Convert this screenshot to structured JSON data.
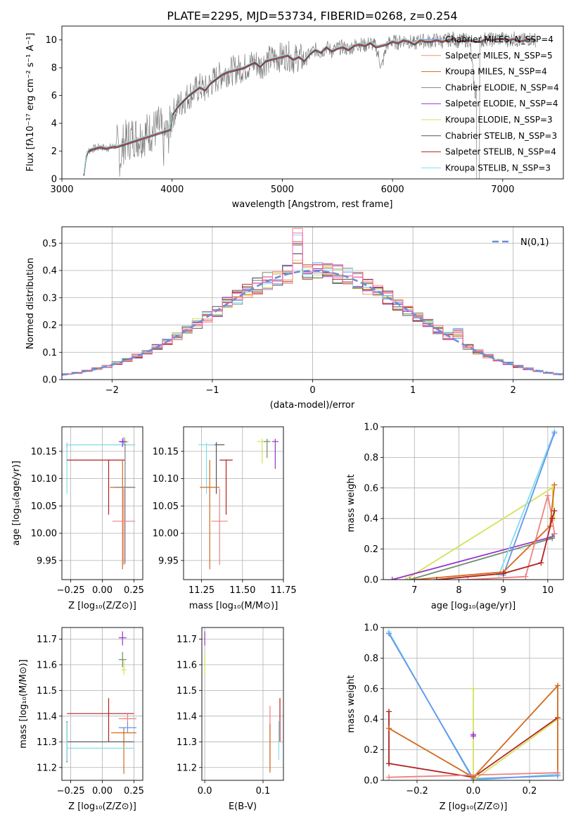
{
  "chart_data": [
    {
      "id": "spectrum",
      "type": "line",
      "title": "PLATE=2295, MJD=53734, FIBERID=0268, z=0.254",
      "xlabel": "wavelength [Angstrom, rest frame]",
      "ylabel": "Flux [fλ10⁻¹⁷ erg cm⁻² s⁻¹ A⁻¹]",
      "xlim": [
        3000,
        7550
      ],
      "ylim": [
        0,
        11
      ],
      "xticks": [
        3000,
        4000,
        5000,
        6000,
        7000
      ],
      "yticks": [
        0,
        2,
        4,
        6,
        8,
        10
      ],
      "legend_position": "upper right",
      "data_series": {
        "name": "",
        "color": "#808080",
        "x": [
          3200,
          3220,
          3240,
          3260,
          3300,
          3350,
          3400,
          3450,
          3500,
          3530,
          3560,
          3600,
          3650,
          3700,
          3750,
          3800,
          3850,
          3900,
          3920,
          3940,
          3960,
          3980,
          4000,
          4050,
          4100,
          4150,
          4200,
          4250,
          4300,
          4350,
          4400,
          4450,
          4500,
          4550,
          4600,
          4650,
          4700,
          4750,
          4800,
          4850,
          4900,
          4950,
          5000,
          5050,
          5100,
          5150,
          5200,
          5250,
          5300,
          5350,
          5400,
          5450,
          5500,
          5550,
          5600,
          5650,
          5700,
          5750,
          5800,
          5850,
          5900,
          5950,
          6000,
          6050,
          6100,
          6150,
          6200,
          6250,
          6300,
          6350,
          6400,
          6450,
          6500,
          6550,
          6600,
          6650,
          6700,
          6750,
          6800,
          6850,
          6900,
          6950,
          7000,
          7050,
          7100,
          7150,
          7200,
          7250,
          7300
        ],
        "y": [
          0.3,
          1.6,
          2.0,
          2.1,
          2.2,
          2.3,
          2.2,
          2.3,
          2.4,
          1.5,
          2.6,
          2.8,
          3.1,
          3.0,
          3.2,
          3.4,
          3.6,
          3.8,
          2.0,
          3.5,
          3.0,
          3.7,
          4.6,
          5.2,
          5.6,
          6.0,
          6.3,
          6.6,
          6.4,
          6.9,
          7.2,
          7.5,
          7.7,
          7.8,
          7.9,
          8.0,
          8.2,
          8.4,
          8.1,
          8.5,
          8.6,
          8.7,
          8.8,
          8.9,
          8.6,
          8.8,
          8.5,
          9.0,
          9.3,
          9.1,
          9.5,
          9.2,
          9.4,
          9.5,
          9.3,
          9.6,
          9.7,
          9.6,
          9.8,
          9.5,
          8.0,
          9.7,
          9.9,
          9.8,
          10.0,
          9.9,
          9.7,
          10.0,
          9.9,
          9.9,
          10.0,
          9.9,
          10.0,
          10.1,
          9.9,
          10.0,
          10.0,
          6.0,
          9.9,
          10.1,
          10.0,
          10.1,
          10.1,
          10.0,
          10.1,
          9.9,
          10.0,
          10.1,
          10.0
        ]
      },
      "series": [
        {
          "name": "Chabrier MILES, N_SSP=4",
          "color": "#6495ed"
        },
        {
          "name": "Salpeter MILES, N_SSP=5",
          "color": "#e9967a"
        },
        {
          "name": "Kroupa MILES, N_SSP=4",
          "color": "#d2691e"
        },
        {
          "name": "Chabrier ELODIE, N_SSP=4",
          "color": "#6b8e6b"
        },
        {
          "name": "Salpeter ELODIE, N_SSP=4",
          "color": "#9932cc"
        },
        {
          "name": "Kroupa ELODIE, N_SSP=3",
          "color": "#d4e157"
        },
        {
          "name": "Chabrier STELIB, N_SSP=3",
          "color": "#555555"
        },
        {
          "name": "Salpeter STELIB, N_SSP=4",
          "color": "#b22222"
        },
        {
          "name": "Kroupa STELIB, N_SSP=3",
          "color": "#80deea"
        }
      ]
    },
    {
      "id": "residuals",
      "type": "line",
      "xlabel": "(data-model)/error",
      "ylabel": "Normed distribution",
      "xlim": [
        -2.5,
        2.5
      ],
      "ylim": [
        0,
        0.56
      ],
      "xticks": [
        -2,
        -1,
        0,
        1,
        2
      ],
      "yticks": [
        0.0,
        0.1,
        0.2,
        0.3,
        0.4,
        0.5
      ],
      "legend": "N(0,1)",
      "legend_position": "upper right",
      "bin_width": 0.1,
      "hist_bin_start": -2.5,
      "hist_colors": [
        "#6495ed",
        "#e9967a",
        "#d2691e",
        "#6b8e6b",
        "#9932cc",
        "#d4e157",
        "#555555",
        "#b22222",
        "#80deea",
        "#f08080",
        "#ff69b4"
      ]
    },
    {
      "id": "age_vs_Z",
      "type": "scatter",
      "xlabel": "Z [log₁₀(Z/Z⊙)]",
      "ylabel": "age  [log₁₀(age/yr)]",
      "xlim": [
        -0.32,
        0.32
      ],
      "ylim": [
        9.915,
        10.195
      ],
      "xticks": [
        -0.25,
        0.0,
        0.25
      ],
      "xtick_labels": [
        "−0.25",
        "0.00",
        "0.25"
      ],
      "yticks": [
        9.95,
        10.0,
        10.05,
        10.1,
        10.15
      ],
      "points": [
        {
          "x": 0.17,
          "y": 10.167,
          "xerr": 0.03,
          "yerr": [
            0.006,
            0.009
          ],
          "color": "#6495ed"
        },
        {
          "x": -0.28,
          "y": 10.162,
          "xerr_range": [
            -0.28,
            0.26
          ],
          "yerr": [
            0.005,
            0.004
          ],
          "color": "#6b8e6b"
        },
        {
          "x": -0.28,
          "y": 10.162,
          "xerr_range": [
            -0.28,
            0.26
          ],
          "yerr": [
            0.09,
            0.004
          ],
          "color": "#80deea"
        },
        {
          "x": 0.18,
          "y": 10.168,
          "xerr": 0.03,
          "yerr": [
            0.012,
            0.007
          ],
          "color": "#d4e157"
        },
        {
          "x": 0.16,
          "y": 10.168,
          "xerr": 0.03,
          "yerr": [
            0.01,
            0.006
          ],
          "color": "#9932cc"
        },
        {
          "x": 0.05,
          "y": 10.134,
          "xerr_range": [
            -0.28,
            0.18
          ],
          "yerr": [
            0.1,
            0.0
          ],
          "color": "#b22222"
        },
        {
          "x": 0.16,
          "y": 10.084,
          "xerr": 0.1,
          "yerr": [
            0.15,
            0.05
          ],
          "color": "#d2691e"
        },
        {
          "x": 0.18,
          "y": 10.084,
          "xerr": 0.08,
          "yerr": [
            0.14,
            0.08
          ],
          "color": "#808080"
        },
        {
          "x": 0.17,
          "y": 10.022,
          "xerr": 0.09,
          "yerr": [
            0.08,
            0.06
          ],
          "color": "#f08080"
        }
      ]
    },
    {
      "id": "age_vs_mass",
      "type": "scatter",
      "xlabel": "mass [log₁₀(M/M⊙)]",
      "ylabel": "",
      "xlim": [
        11.14,
        11.75
      ],
      "ylim": [
        9.915,
        10.195
      ],
      "xticks": [
        11.25,
        11.5,
        11.75
      ],
      "xtick_labels": [
        "11.25",
        "11.50",
        "11.75"
      ],
      "yticks": [
        9.95,
        10.0,
        10.05,
        10.1,
        10.15
      ],
      "points": [
        {
          "x": 11.62,
          "y": 10.168,
          "xerr": 0.03,
          "yerr": [
            0.04,
            0.005
          ],
          "color": "#d4e157"
        },
        {
          "x": 11.65,
          "y": 10.168,
          "xerr": 0.02,
          "yerr": [
            0.03,
            0.005
          ],
          "color": "#6b8e6b"
        },
        {
          "x": 11.7,
          "y": 10.168,
          "xerr": 0.02,
          "yerr": [
            0.05,
            0.005
          ],
          "color": "#9932cc"
        },
        {
          "x": 11.34,
          "y": 10.162,
          "xerr": 0.05,
          "yerr": [
            0.09,
            0.005
          ],
          "color": "#555555"
        },
        {
          "x": 11.28,
          "y": 10.162,
          "xerr": 0.05,
          "yerr": [
            0.09,
            0.004
          ],
          "color": "#80deea"
        },
        {
          "x": 11.4,
          "y": 10.134,
          "xerr": 0.04,
          "yerr": [
            0.1,
            0.0
          ],
          "color": "#b22222"
        },
        {
          "x": 11.3,
          "y": 10.084,
          "xerr": 0.06,
          "yerr": [
            0.15,
            0.05
          ],
          "color": "#d2691e"
        },
        {
          "x": 11.36,
          "y": 10.022,
          "xerr": 0.05,
          "yerr": [
            0.08,
            0.06
          ],
          "color": "#f08080"
        }
      ]
    },
    {
      "id": "massweight_vs_age",
      "type": "line",
      "xlabel": "age  [log₁₀(age/yr)]",
      "ylabel": "mass weight",
      "xlim": [
        6.3,
        10.35
      ],
      "ylim": [
        0,
        1.0
      ],
      "xticks": [
        7,
        8,
        9,
        10
      ],
      "yticks": [
        0.0,
        0.2,
        0.4,
        0.6,
        0.8,
        1.0
      ],
      "series": [
        {
          "color": "#d4e157",
          "x": [
            6.8,
            10.1,
            10.15
          ],
          "y": [
            0.0,
            0.6,
            0.4
          ]
        },
        {
          "color": "#9932cc",
          "x": [
            6.5,
            10.1,
            10.15
          ],
          "y": [
            0.0,
            0.28,
            0.3
          ]
        },
        {
          "color": "#6b8e6b",
          "x": [
            6.9,
            10.1,
            10.15
          ],
          "y": [
            0.0,
            0.27,
            0.3
          ]
        },
        {
          "color": "#80deea",
          "x": [
            8.9,
            10.15
          ],
          "y": [
            0.03,
            0.97
          ]
        },
        {
          "color": "#6495ed",
          "x": [
            9.0,
            10.15
          ],
          "y": [
            0.03,
            0.96
          ]
        },
        {
          "color": "#f08080",
          "x": [
            8.2,
            9.5,
            10.0,
            10.1,
            10.15
          ],
          "y": [
            0.0,
            0.02,
            0.55,
            0.4,
            0.3
          ]
        },
        {
          "color": "#d2691e",
          "x": [
            7.0,
            9.0,
            10.05,
            10.15
          ],
          "y": [
            0.0,
            0.05,
            0.35,
            0.62
          ]
        },
        {
          "color": "#b22222",
          "x": [
            7.5,
            9.0,
            9.85,
            10.1,
            10.15
          ],
          "y": [
            0.0,
            0.04,
            0.11,
            0.4,
            0.45
          ]
        }
      ]
    },
    {
      "id": "mass_vs_Z",
      "type": "scatter",
      "xlabel": "Z [log₁₀(Z/Z⊙)]",
      "ylabel": "mass [log₁₀(M/M⊙)]",
      "xlim": [
        -0.32,
        0.32
      ],
      "ylim": [
        11.15,
        11.745
      ],
      "xticks": [
        -0.25,
        0.0,
        0.25
      ],
      "xtick_labels": [
        "−0.25",
        "0.00",
        "0.25"
      ],
      "yticks": [
        11.2,
        11.3,
        11.4,
        11.5,
        11.6,
        11.7
      ],
      "points": [
        {
          "x": 0.16,
          "y": 11.705,
          "xerr": 0.03,
          "yerr": [
            0.03,
            0.025
          ],
          "color": "#9932cc"
        },
        {
          "x": 0.16,
          "y": 11.62,
          "xerr": 0.03,
          "yerr": [
            0.03,
            0.03
          ],
          "color": "#6b8e6b"
        },
        {
          "x": 0.17,
          "y": 11.58,
          "xerr": 0.02,
          "yerr": [
            0.02,
            0.04
          ],
          "color": "#d4e157"
        },
        {
          "x": 0.05,
          "y": 11.41,
          "xerr_range": [
            -0.28,
            0.25
          ],
          "yerr": [
            0.11,
            0.06
          ],
          "color": "#b22222"
        },
        {
          "x": 0.2,
          "y": 11.39,
          "xerr": 0.07,
          "yerr": [
            0.02,
            0.02
          ],
          "color": "#f08080"
        },
        {
          "x": 0.2,
          "y": 11.355,
          "xerr": 0.07,
          "yerr": [
            0.02,
            0.02
          ],
          "color": "#6495ed"
        },
        {
          "x": 0.17,
          "y": 11.335,
          "xerr": 0.1,
          "yerr": [
            0.16,
            0.02
          ],
          "color": "#d2691e"
        },
        {
          "x": -0.28,
          "y": 11.3,
          "xerr_range": [
            -0.28,
            0.25
          ],
          "yerr": [
            0.08,
            0.08
          ],
          "color": "#555555"
        },
        {
          "x": -0.28,
          "y": 11.275,
          "xerr_range": [
            -0.28,
            0.25
          ],
          "yerr": [
            0.05,
            0.1
          ],
          "color": "#80deea"
        }
      ]
    },
    {
      "id": "mass_vs_ebv",
      "type": "scatter",
      "xlabel": "E(B-V)",
      "ylabel": "",
      "xlim": [
        -0.005,
        0.135
      ],
      "ylim": [
        11.15,
        11.745
      ],
      "xticks": [
        0.0,
        0.1
      ],
      "xtick_labels": [
        "0.0",
        "0.1"
      ],
      "yticks": [
        11.2,
        11.3,
        11.4,
        11.5,
        11.6,
        11.7
      ],
      "points": [
        {
          "x": 0.0,
          "y": 11.705,
          "yerr": [
            0.03,
            0.025
          ],
          "color": "#9932cc"
        },
        {
          "x": 0.0,
          "y": 11.61,
          "yerr": [
            0.05,
            0.03
          ],
          "color": "#d4e157"
        },
        {
          "x": 0.112,
          "y": 11.39,
          "yerr": [
            0.2,
            0.05
          ],
          "color": "#f08080"
        },
        {
          "x": 0.112,
          "y": 11.33,
          "yerr": [
            0.15,
            0.04
          ],
          "color": "#d2691e"
        },
        {
          "x": 0.129,
          "y": 11.37,
          "yerr": [
            0.07,
            0.1
          ],
          "color": "#b22222"
        },
        {
          "x": 0.127,
          "y": 11.3,
          "yerr": [
            0.07,
            0.08
          ],
          "color": "#80deea"
        }
      ]
    },
    {
      "id": "massweight_vs_Z",
      "type": "line",
      "xlabel": "Z [log₁₀(Z/Z⊙)]",
      "ylabel": "mass weight",
      "xlim": [
        -0.32,
        0.32
      ],
      "ylim": [
        0,
        1.0
      ],
      "xticks": [
        -0.2,
        0.0,
        0.2
      ],
      "xtick_labels": [
        "−0.2",
        "0.0",
        "0.2"
      ],
      "yticks": [
        0.0,
        0.2,
        0.4,
        0.6,
        0.8,
        1.0
      ],
      "series": [
        {
          "color": "#80deea",
          "x": [
            -0.3,
            0.0,
            0.3
          ],
          "y": [
            0.97,
            0.0,
            0.04
          ]
        },
        {
          "color": "#6495ed",
          "x": [
            -0.3,
            0.0,
            0.3
          ],
          "y": [
            0.96,
            0.01,
            0.03
          ]
        },
        {
          "color": "#d4e157",
          "x": [
            0.0,
            0.0,
            0.3
          ],
          "y": [
            0.6,
            0.0,
            0.4
          ]
        },
        {
          "color": "#9932cc",
          "x": [
            0.0,
            0.0
          ],
          "y": [
            0.29,
            0.3
          ]
        },
        {
          "color": "#b22222",
          "x": [
            -0.3,
            -0.3,
            -0.3,
            0.0,
            0.3
          ],
          "y": [
            0.45,
            0.11,
            0.11,
            0.02,
            0.41
          ]
        },
        {
          "color": "#d2691e",
          "x": [
            -0.3,
            0.0,
            0.3,
            0.3
          ],
          "y": [
            0.34,
            0.02,
            0.62,
            0.05
          ]
        },
        {
          "color": "#f08080",
          "x": [
            -0.3,
            0.3
          ],
          "y": [
            0.02,
            0.05
          ]
        }
      ]
    }
  ]
}
